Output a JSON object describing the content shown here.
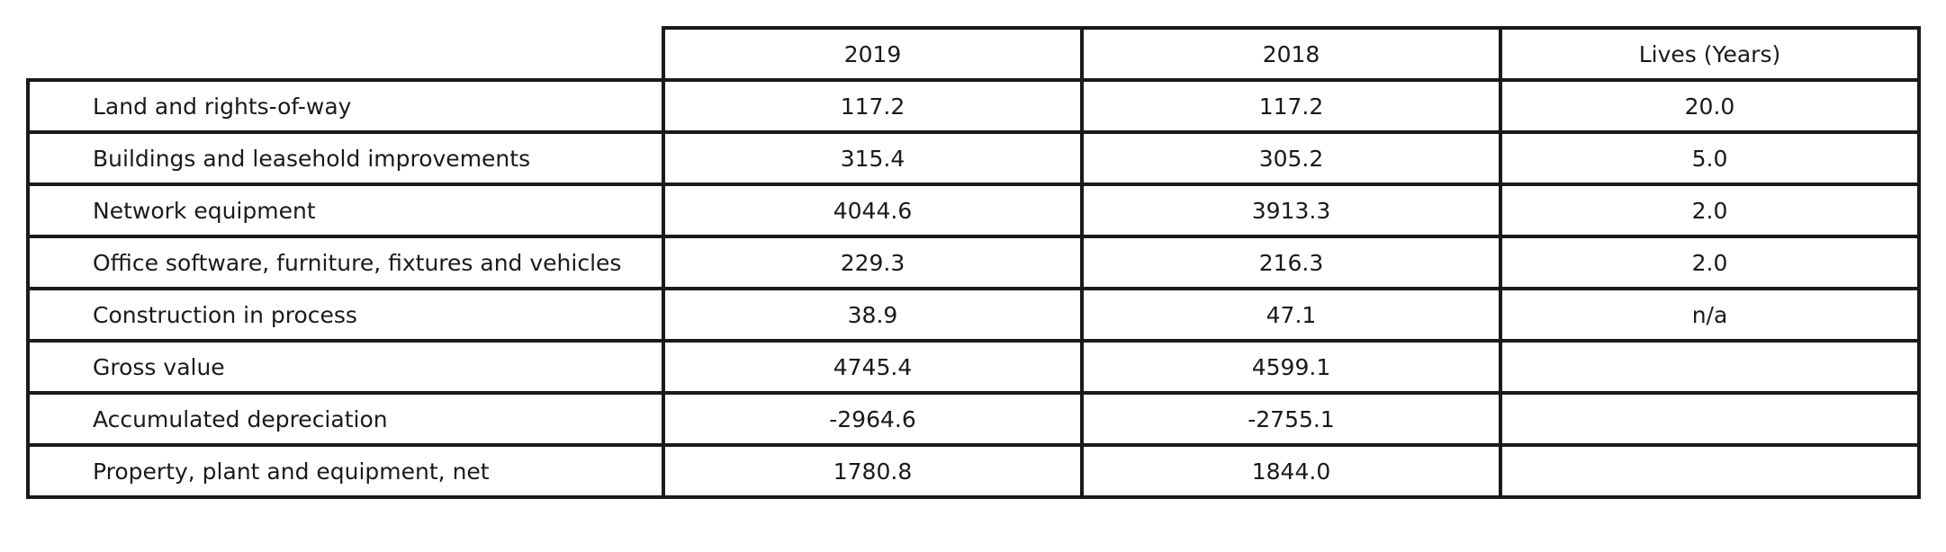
{
  "table": {
    "headers": [
      "",
      "2019",
      "2018",
      "Lives (Years)"
    ],
    "rows": [
      {
        "label": "Land and rights-of-way",
        "y2019": "117.2",
        "y2018": "117.2",
        "lives": "20.0"
      },
      {
        "label": "Buildings and leasehold improvements",
        "y2019": "315.4",
        "y2018": "305.2",
        "lives": "5.0"
      },
      {
        "label": "Network equipment",
        "y2019": "4044.6",
        "y2018": "3913.3",
        "lives": "2.0"
      },
      {
        "label": "Office software, furniture, fixtures and vehicles",
        "y2019": "229.3",
        "y2018": "216.3",
        "lives": "2.0"
      },
      {
        "label": "Construction in process",
        "y2019": "38.9",
        "y2018": "47.1",
        "lives": "n/a"
      },
      {
        "label": "Gross value",
        "y2019": "4745.4",
        "y2018": "4599.1",
        "lives": ""
      },
      {
        "label": "Accumulated depreciation",
        "y2019": "-2964.6",
        "y2018": "-2755.1",
        "lives": ""
      },
      {
        "label": "Property, plant and equipment, net",
        "y2019": "1780.8",
        "y2018": "1844.0",
        "lives": ""
      }
    ]
  }
}
